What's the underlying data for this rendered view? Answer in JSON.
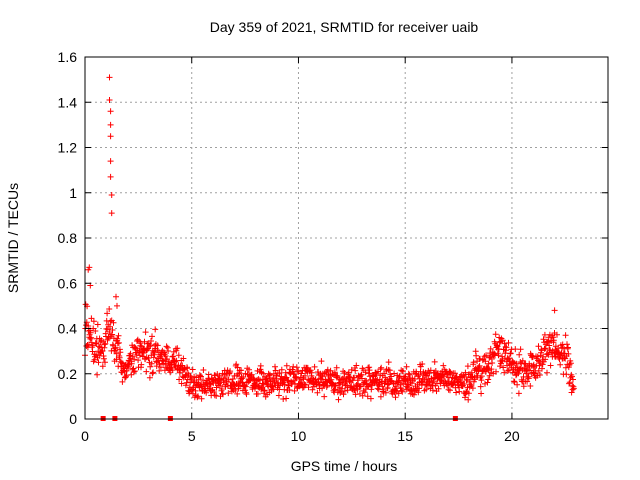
{
  "chart_data": {
    "type": "scatter",
    "title": "Day 359 of 2021, SRMTID for receiver uaib",
    "xlabel": "GPS time / hours",
    "ylabel": "SRMTID / TECUs",
    "xlim": [
      0,
      24.5
    ],
    "ylim": [
      0,
      1.6
    ],
    "xticks": [
      0,
      5,
      10,
      15,
      20
    ],
    "xtick_labels": [
      "0",
      "5",
      "10",
      "15",
      "20"
    ],
    "yticks": [
      0,
      0.2,
      0.4,
      0.6,
      0.8,
      1,
      1.2,
      1.4,
      1.6
    ],
    "ytick_labels": [
      "0",
      "0.2",
      "0.4",
      "0.6",
      "0.8",
      "1",
      "1.2",
      "1.4",
      "1.6"
    ],
    "grid": true,
    "marker": "+",
    "colors": {
      "series": "#ff0000",
      "grid": "#a0a0a0",
      "axis": "#000000"
    },
    "series": [
      {
        "name": "SRMTID",
        "envelope": {
          "description": "typical value and spread of the dense point cloud over time (hours, TECU)",
          "x": [
            0.0,
            0.3,
            0.6,
            0.9,
            1.0,
            1.3,
            1.5,
            1.8,
            2.2,
            2.6,
            3.0,
            3.4,
            3.8,
            4.2,
            4.6,
            4.9,
            5.5,
            6.5,
            7.5,
            8.5,
            9.5,
            10.5,
            11.5,
            12.5,
            13.5,
            14.5,
            15.5,
            16.5,
            17.3,
            17.8,
            18.3,
            18.8,
            19.2,
            19.7,
            20.3,
            20.8,
            21.3,
            21.8,
            22.2,
            22.6,
            22.9
          ],
          "mid": [
            0.4,
            0.35,
            0.3,
            0.28,
            0.42,
            0.36,
            0.3,
            0.2,
            0.26,
            0.3,
            0.3,
            0.28,
            0.26,
            0.25,
            0.22,
            0.16,
            0.15,
            0.17,
            0.18,
            0.16,
            0.17,
            0.18,
            0.17,
            0.16,
            0.17,
            0.16,
            0.17,
            0.18,
            0.17,
            0.16,
            0.21,
            0.22,
            0.3,
            0.26,
            0.22,
            0.2,
            0.25,
            0.34,
            0.3,
            0.25,
            0.14
          ],
          "spread": [
            0.09,
            0.08,
            0.07,
            0.06,
            0.07,
            0.09,
            0.08,
            0.05,
            0.07,
            0.07,
            0.07,
            0.07,
            0.06,
            0.06,
            0.06,
            0.05,
            0.05,
            0.05,
            0.05,
            0.05,
            0.05,
            0.05,
            0.05,
            0.05,
            0.05,
            0.05,
            0.05,
            0.05,
            0.04,
            0.05,
            0.06,
            0.06,
            0.06,
            0.06,
            0.06,
            0.05,
            0.06,
            0.07,
            0.07,
            0.07,
            0.03
          ]
        },
        "sample_step_hours": 0.0167,
        "outliers": [
          {
            "x": 1.15,
            "y": 1.51
          },
          {
            "x": 1.15,
            "y": 1.41
          },
          {
            "x": 1.2,
            "y": 1.36
          },
          {
            "x": 1.2,
            "y": 1.3
          },
          {
            "x": 1.2,
            "y": 1.25
          },
          {
            "x": 1.2,
            "y": 1.14
          },
          {
            "x": 1.2,
            "y": 1.07
          },
          {
            "x": 1.25,
            "y": 0.99
          },
          {
            "x": 1.25,
            "y": 0.91
          },
          {
            "x": 0.2,
            "y": 0.67
          },
          {
            "x": 0.15,
            "y": 0.66
          },
          {
            "x": 0.25,
            "y": 0.59
          },
          {
            "x": 1.45,
            "y": 0.54
          },
          {
            "x": 1.5,
            "y": 0.5
          },
          {
            "x": 22.0,
            "y": 0.48
          }
        ],
        "zero_markers_x": [
          0.85,
          1.4,
          4.0,
          17.35
        ]
      }
    ]
  }
}
